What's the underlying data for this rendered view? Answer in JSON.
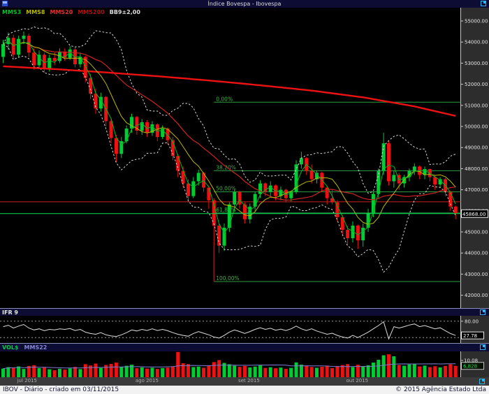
{
  "title_bar": {
    "title": "Índice Bovespa - Ibovespa"
  },
  "legend": {
    "items": [
      {
        "label": "MMS3",
        "color": "#00c22a"
      },
      {
        "label": "MMS8",
        "color": "#b8b800"
      },
      {
        "label": "MMS20",
        "color": "#e03030"
      },
      {
        "label": "MMS200",
        "color": "#aa1212"
      },
      {
        "label": "BB9±2,00",
        "color": "#dddddd"
      }
    ]
  },
  "rsi_panel": {
    "title": "IFR 9",
    "level_label": "80.00",
    "value_box": "27.78"
  },
  "volume_panel": {
    "title": "VOL$",
    "ma_label": "MMS22",
    "scale_label": "10.08",
    "value_box": "6,828"
  },
  "status_bar": {
    "left": "IBOV - Diário - criado em 03/11/2015",
    "right": "© 2015 Agência Estado Ltda"
  },
  "colors": {
    "up": "#00cc33",
    "down": "#ee1111",
    "mms3": "#00b822",
    "mms8": "#b8b800",
    "mms20": "#cc2222",
    "mms200": "#ee1111",
    "bb": "#d8d8d8",
    "fib": "#2e9e44",
    "fib_label": "#43b043",
    "price_line": "#00dd55",
    "support_line": "#cc2222",
    "crash_line": "#8b1a1a",
    "rsi_line": "#dcdcdc",
    "rsi_level": "#9a9a9a",
    "vol_ma": "#7b7bd5",
    "axis_text": "#e4e4e4",
    "accent": "#2ab7f5"
  },
  "chart_data": {
    "type": "candlestick",
    "title": "Índice Bovespa - Ibovespa",
    "ylim": [
      42000,
      55000
    ],
    "y_ticks": [
      {
        "price": 55000,
        "label": "55000.00"
      },
      {
        "price": 54000,
        "label": "54000.00"
      },
      {
        "price": 53000,
        "label": "53000.00"
      },
      {
        "price": 52000,
        "label": "52000.00"
      },
      {
        "price": 51000,
        "label": "51000.00"
      },
      {
        "price": 50000,
        "label": "50000.00"
      },
      {
        "price": 49000,
        "label": "49000.00"
      },
      {
        "price": 48000,
        "label": "48000.00"
      },
      {
        "price": 47000,
        "label": "47000.00"
      },
      {
        "price": 46000,
        "label": "46000.00"
      },
      {
        "price": 45000,
        "label": "45000.00"
      },
      {
        "price": 44000,
        "label": "44000.00"
      },
      {
        "price": 43000,
        "label": "43000.00"
      },
      {
        "price": 42000,
        "label": "42000.00"
      }
    ],
    "x_months": [
      {
        "label": "jul 2015",
        "index": 3
      },
      {
        "label": "ago 2015",
        "index": 26
      },
      {
        "label": "set 2015",
        "index": 46
      },
      {
        "label": "out 2015",
        "index": 67
      }
    ],
    "last_price": 45868,
    "last_price_label": "45868.00",
    "support_line_price": 46430,
    "crash_marker": {
      "index": 41,
      "from_price": 44350,
      "to_price": 42650
    },
    "fib_levels": [
      {
        "label": "0,00%",
        "price": 51150
      },
      {
        "label": "38,20%",
        "price": 47900
      },
      {
        "label": "50,00%",
        "price": 46900
      },
      {
        "label": "61,80%",
        "price": 45900
      },
      {
        "label": "100,00%",
        "price": 42650
      }
    ],
    "mms200_points": [
      [
        0,
        52850
      ],
      [
        10,
        52720
      ],
      [
        20,
        52560
      ],
      [
        30,
        52380
      ],
      [
        40,
        52180
      ],
      [
        50,
        51950
      ],
      [
        60,
        51700
      ],
      [
        70,
        51380
      ],
      [
        80,
        50950
      ],
      [
        88,
        50500
      ]
    ],
    "candles": [
      [
        53300,
        54100,
        53000,
        53900
      ],
      [
        53900,
        54450,
        53650,
        54200
      ],
      [
        54200,
        54350,
        53250,
        53400
      ],
      [
        53400,
        54300,
        53300,
        54150
      ],
      [
        54150,
        54500,
        53900,
        54300
      ],
      [
        54300,
        54400,
        53300,
        53500
      ],
      [
        53500,
        53700,
        52700,
        52900
      ],
      [
        52900,
        53600,
        52800,
        53400
      ],
      [
        53400,
        53500,
        52550,
        52750
      ],
      [
        52750,
        53400,
        52600,
        53250
      ],
      [
        53250,
        53500,
        52900,
        53100
      ],
      [
        53100,
        53700,
        53000,
        53550
      ],
      [
        53550,
        53700,
        53100,
        53250
      ],
      [
        53250,
        53800,
        53150,
        53650
      ],
      [
        53650,
        53750,
        52800,
        52950
      ],
      [
        52950,
        53500,
        52800,
        53300
      ],
      [
        53300,
        53350,
        52100,
        52300
      ],
      [
        52300,
        52500,
        51300,
        51550
      ],
      [
        51550,
        51800,
        50600,
        50850
      ],
      [
        50850,
        51600,
        50700,
        51400
      ],
      [
        51400,
        51450,
        50000,
        50250
      ],
      [
        50250,
        50400,
        49200,
        49450
      ],
      [
        49450,
        49600,
        48300,
        48700
      ],
      [
        48700,
        49500,
        48500,
        49300
      ],
      [
        49300,
        50050,
        49200,
        49900
      ],
      [
        49900,
        50600,
        49700,
        50450
      ],
      [
        50450,
        50500,
        49600,
        49800
      ],
      [
        49800,
        50350,
        49600,
        50200
      ],
      [
        50200,
        50300,
        49500,
        49700
      ],
      [
        49700,
        50250,
        49550,
        50100
      ],
      [
        50100,
        50150,
        49300,
        49500
      ],
      [
        49500,
        50050,
        49400,
        49900
      ],
      [
        49900,
        49950,
        49150,
        49350
      ],
      [
        49350,
        49500,
        48400,
        48600
      ],
      [
        48600,
        48700,
        47600,
        47900
      ],
      [
        47900,
        48100,
        47100,
        47300
      ],
      [
        47300,
        47500,
        46400,
        46700
      ],
      [
        46700,
        47600,
        46600,
        47400
      ],
      [
        47400,
        47950,
        47200,
        47800
      ],
      [
        47800,
        47850,
        46900,
        47100
      ],
      [
        47100,
        47200,
        46100,
        46500
      ],
      [
        46500,
        46600,
        44350,
        45300
      ],
      [
        45300,
        45400,
        44000,
        44350
      ],
      [
        44350,
        45400,
        44100,
        45200
      ],
      [
        45200,
        46400,
        45000,
        46300
      ],
      [
        46300,
        47000,
        46000,
        46900
      ],
      [
        46900,
        46950,
        46100,
        46300
      ],
      [
        46300,
        46400,
        45400,
        45600
      ],
      [
        45600,
        46350,
        45400,
        46200
      ],
      [
        46200,
        46900,
        46000,
        46800
      ],
      [
        46800,
        47450,
        46600,
        47300
      ],
      [
        47300,
        47350,
        46700,
        46900
      ],
      [
        46900,
        47400,
        46700,
        47200
      ],
      [
        47200,
        47250,
        46500,
        46700
      ],
      [
        46700,
        47150,
        46500,
        47000
      ],
      [
        47000,
        47050,
        46400,
        46600
      ],
      [
        46600,
        46950,
        46450,
        46900
      ],
      [
        46900,
        48400,
        46800,
        48200
      ],
      [
        48200,
        48800,
        48000,
        48500
      ],
      [
        48500,
        48550,
        47700,
        47900
      ],
      [
        47900,
        48200,
        47300,
        47500
      ],
      [
        47500,
        47900,
        47300,
        47800
      ],
      [
        47800,
        47850,
        46900,
        47100
      ],
      [
        47100,
        47200,
        46300,
        46600
      ],
      [
        46600,
        47000,
        46300,
        46400
      ],
      [
        46400,
        46500,
        45500,
        45700
      ],
      [
        45700,
        45800,
        44800,
        45100
      ],
      [
        45100,
        45300,
        44400,
        44700
      ],
      [
        44700,
        45500,
        44500,
        45300
      ],
      [
        45300,
        45350,
        44200,
        44600
      ],
      [
        44600,
        45400,
        44300,
        45200
      ],
      [
        45200,
        46100,
        45000,
        45900
      ],
      [
        45900,
        46900,
        45700,
        46800
      ],
      [
        46800,
        48000,
        46600,
        47900
      ],
      [
        47900,
        49700,
        47700,
        49200
      ],
      [
        49200,
        49300,
        47200,
        47400
      ],
      [
        47400,
        47900,
        47100,
        47700
      ],
      [
        47700,
        47800,
        47000,
        47300
      ],
      [
        47300,
        47700,
        47100,
        47600
      ],
      [
        47600,
        48000,
        47400,
        47900
      ],
      [
        47900,
        48250,
        47700,
        48100
      ],
      [
        48100,
        48150,
        47500,
        47700
      ],
      [
        47700,
        48100,
        47500,
        47980
      ],
      [
        47980,
        48000,
        47400,
        47600
      ],
      [
        47600,
        47700,
        47000,
        47250
      ],
      [
        47250,
        47600,
        47100,
        47500
      ],
      [
        47500,
        47550,
        46700,
        46900
      ],
      [
        46900,
        46950,
        46000,
        46200
      ],
      [
        46200,
        46250,
        45600,
        45868
      ]
    ],
    "volumes": [
      5.2,
      6.1,
      5.8,
      6.5,
      5.0,
      6.8,
      7.2,
      5.5,
      6.0,
      4.8,
      4.2,
      5.1,
      4.6,
      5.3,
      6.2,
      4.9,
      7.8,
      7.1,
      8.2,
      5.6,
      7.4,
      8.0,
      8.8,
      6.3,
      6.9,
      7.5,
      5.4,
      5.9,
      5.2,
      5.7,
      5.0,
      5.5,
      5.8,
      6.6,
      15.2,
      8.4,
      7.9,
      6.1,
      6.4,
      5.7,
      7.2,
      9.1,
      10.3,
      8.6,
      7.8,
      6.9,
      6.2,
      6.8,
      5.9,
      6.4,
      7.1,
      5.6,
      6.0,
      5.4,
      5.8,
      5.1,
      5.6,
      8.9,
      7.6,
      6.8,
      6.2,
      5.7,
      6.3,
      7.0,
      5.5,
      6.7,
      7.3,
      7.9,
      6.1,
      7.5,
      6.6,
      7.2,
      8.8,
      10.5,
      13.2,
      13.8,
      12.6,
      7.4,
      6.9,
      7.7,
      8.2,
      6.5,
      7.0,
      6.1,
      6.6,
      5.9,
      6.8,
      7.8,
      6.828
    ],
    "rsi": [
      60,
      65,
      55,
      62,
      68,
      55,
      48,
      52,
      45,
      50,
      48,
      52,
      50,
      53,
      46,
      50,
      40,
      35,
      32,
      38,
      30,
      26,
      24,
      30,
      38,
      48,
      44,
      50,
      46,
      52,
      46,
      50,
      45,
      38,
      32,
      28,
      25,
      35,
      42,
      36,
      30,
      22,
      18,
      28,
      40,
      48,
      42,
      35,
      42,
      50,
      56,
      50,
      54,
      47,
      51,
      46,
      52,
      62,
      52,
      46,
      52,
      44,
      38,
      32,
      36,
      28,
      22,
      18,
      28,
      20,
      30,
      40,
      52,
      64,
      78,
      15,
      60,
      55,
      60,
      66,
      70,
      60,
      64,
      58,
      52,
      56,
      45,
      35,
      27.78
    ],
    "rsi_levels": [
      80,
      20
    ],
    "rsi_last": 27.78,
    "vol_scale_value": 10.08,
    "vol_last": 6.828
  }
}
